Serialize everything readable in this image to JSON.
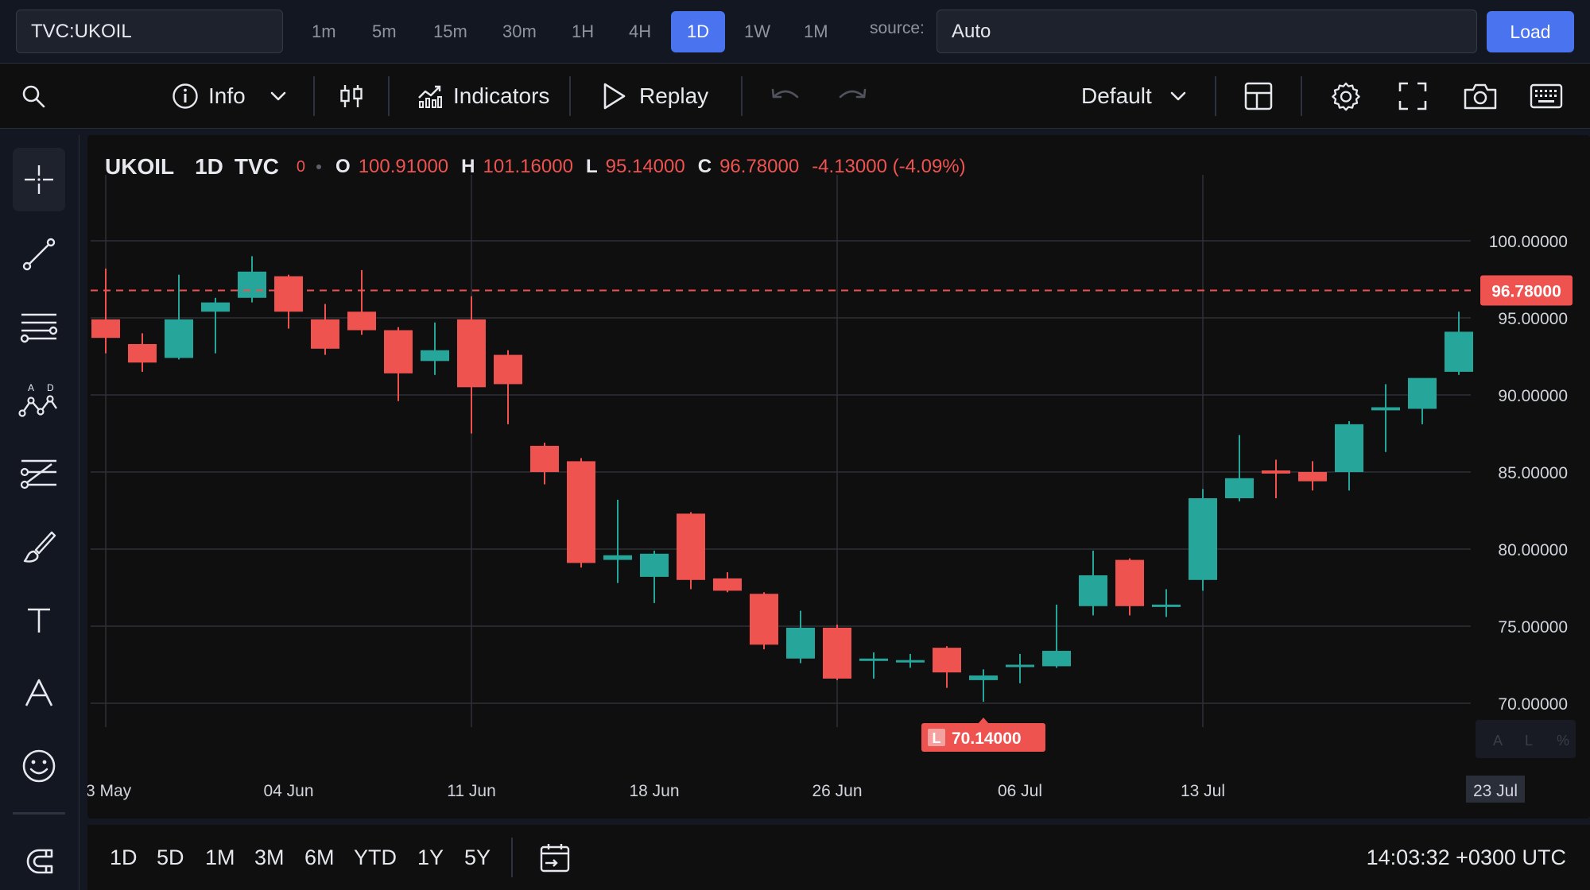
{
  "topbar": {
    "symbol": "TVC:UKOIL",
    "timeframes": [
      "1m",
      "5m",
      "15m",
      "30m",
      "1H",
      "4H",
      "1D",
      "1W",
      "1M"
    ],
    "active_timeframe": "1D",
    "source_label": "source:",
    "source_value": "Auto",
    "load_label": "Load"
  },
  "toolbar": {
    "info_label": "Info",
    "indicators_label": "Indicators",
    "replay_label": "Replay",
    "layout_label": "Default"
  },
  "legend": {
    "symbol": "UKOIL",
    "interval": "1D",
    "source": "TVC",
    "zero": "0",
    "o_label": "O",
    "o_value": "100.91000",
    "h_label": "H",
    "h_value": "101.16000",
    "l_label": "L",
    "l_value": "95.14000",
    "c_label": "C",
    "c_value": "96.78000",
    "change": "-4.13000 (-4.09%)"
  },
  "chart_data": {
    "type": "candlestick",
    "ylim": [
      68,
      101.5
    ],
    "y_ticks": [
      {
        "value": 100,
        "label": "100.00000"
      },
      {
        "value": 95,
        "label": "95.00000"
      },
      {
        "value": 90,
        "label": "90.00000"
      },
      {
        "value": 85,
        "label": "85.00000"
      },
      {
        "value": 80,
        "label": "80.00000"
      },
      {
        "value": 75,
        "label": "75.00000"
      },
      {
        "value": 70,
        "label": "70.00000"
      }
    ],
    "x_ticks": [
      {
        "index": 0,
        "label": "3 May"
      },
      {
        "index": 5,
        "label": "04 Jun"
      },
      {
        "index": 10,
        "label": "11 Jun"
      },
      {
        "index": 15,
        "label": "18 Jun"
      },
      {
        "index": 20,
        "label": "26 Jun"
      },
      {
        "index": 25,
        "label": "06 Jul"
      },
      {
        "index": 30,
        "label": "13 Jul"
      },
      {
        "index": 38,
        "label": "23 Jul"
      }
    ],
    "vertical_gridlines_at_index": [
      0,
      10,
      20,
      30
    ],
    "last_price": 96.78,
    "last_price_label": "96.78000",
    "low_marker": {
      "index": 24,
      "letter": "L",
      "value": 70.14,
      "label": "70.14000"
    },
    "colors": {
      "up": "#26a69a",
      "down": "#ef5350"
    },
    "candles": [
      {
        "o": 94.9,
        "h": 98.2,
        "l": 92.7,
        "c": 93.7
      },
      {
        "o": 93.3,
        "h": 94.0,
        "l": 91.5,
        "c": 92.1
      },
      {
        "o": 92.4,
        "h": 97.8,
        "l": 92.3,
        "c": 94.9
      },
      {
        "o": 95.4,
        "h": 96.3,
        "l": 92.7,
        "c": 96.0
      },
      {
        "o": 96.3,
        "h": 99.0,
        "l": 96.0,
        "c": 98.0
      },
      {
        "o": 97.7,
        "h": 97.8,
        "l": 94.3,
        "c": 95.4
      },
      {
        "o": 94.9,
        "h": 95.9,
        "l": 92.6,
        "c": 93.0
      },
      {
        "o": 95.4,
        "h": 98.1,
        "l": 93.9,
        "c": 94.2
      },
      {
        "o": 94.2,
        "h": 94.4,
        "l": 89.6,
        "c": 91.4
      },
      {
        "o": 92.2,
        "h": 94.7,
        "l": 91.3,
        "c": 92.9
      },
      {
        "o": 94.9,
        "h": 96.4,
        "l": 87.5,
        "c": 90.5
      },
      {
        "o": 92.6,
        "h": 92.9,
        "l": 88.1,
        "c": 90.7
      },
      {
        "o": 86.7,
        "h": 86.9,
        "l": 84.2,
        "c": 85.0
      },
      {
        "o": 85.7,
        "h": 85.9,
        "l": 78.8,
        "c": 79.1
      },
      {
        "o": 79.3,
        "h": 83.2,
        "l": 77.8,
        "c": 79.6
      },
      {
        "o": 78.2,
        "h": 79.9,
        "l": 76.5,
        "c": 79.7
      },
      {
        "o": 82.3,
        "h": 82.4,
        "l": 77.4,
        "c": 78.0
      },
      {
        "o": 78.1,
        "h": 78.5,
        "l": 77.2,
        "c": 77.3
      },
      {
        "o": 77.1,
        "h": 77.2,
        "l": 73.5,
        "c": 73.8
      },
      {
        "o": 72.9,
        "h": 76.0,
        "l": 72.6,
        "c": 74.9
      },
      {
        "o": 74.9,
        "h": 75.1,
        "l": 71.5,
        "c": 71.6
      },
      {
        "o": 72.9,
        "h": 73.3,
        "l": 71.6,
        "c": 72.9
      },
      {
        "o": 72.7,
        "h": 73.2,
        "l": 72.3,
        "c": 72.8
      },
      {
        "o": 73.6,
        "h": 73.7,
        "l": 71.0,
        "c": 72.0
      },
      {
        "o": 71.5,
        "h": 72.2,
        "l": 70.1,
        "c": 71.8
      },
      {
        "o": 72.4,
        "h": 73.2,
        "l": 71.3,
        "c": 72.5
      },
      {
        "o": 72.4,
        "h": 76.4,
        "l": 72.3,
        "c": 73.4
      },
      {
        "o": 76.3,
        "h": 79.9,
        "l": 75.7,
        "c": 78.3
      },
      {
        "o": 79.3,
        "h": 79.4,
        "l": 75.7,
        "c": 76.3
      },
      {
        "o": 76.3,
        "h": 77.4,
        "l": 75.6,
        "c": 76.4
      },
      {
        "o": 78.0,
        "h": 83.9,
        "l": 77.3,
        "c": 83.3
      },
      {
        "o": 83.3,
        "h": 87.4,
        "l": 83.1,
        "c": 84.6
      },
      {
        "o": 85.1,
        "h": 85.8,
        "l": 83.3,
        "c": 84.9
      },
      {
        "o": 85.0,
        "h": 85.7,
        "l": 83.8,
        "c": 84.4
      },
      {
        "o": 85.0,
        "h": 88.3,
        "l": 83.8,
        "c": 88.1
      },
      {
        "o": 89.0,
        "h": 90.7,
        "l": 86.3,
        "c": 89.2
      },
      {
        "o": 89.1,
        "h": 91.0,
        "l": 88.1,
        "c": 91.1
      },
      {
        "o": 91.5,
        "h": 95.4,
        "l": 91.3,
        "c": 94.1
      }
    ]
  },
  "scale_buttons": {
    "auto": "A",
    "log": "L",
    "percent": "%"
  },
  "bottombar": {
    "ranges": [
      "1D",
      "5D",
      "1M",
      "3M",
      "6M",
      "YTD",
      "1Y",
      "5Y"
    ],
    "clock": "14:03:32 +0300 UTC"
  }
}
